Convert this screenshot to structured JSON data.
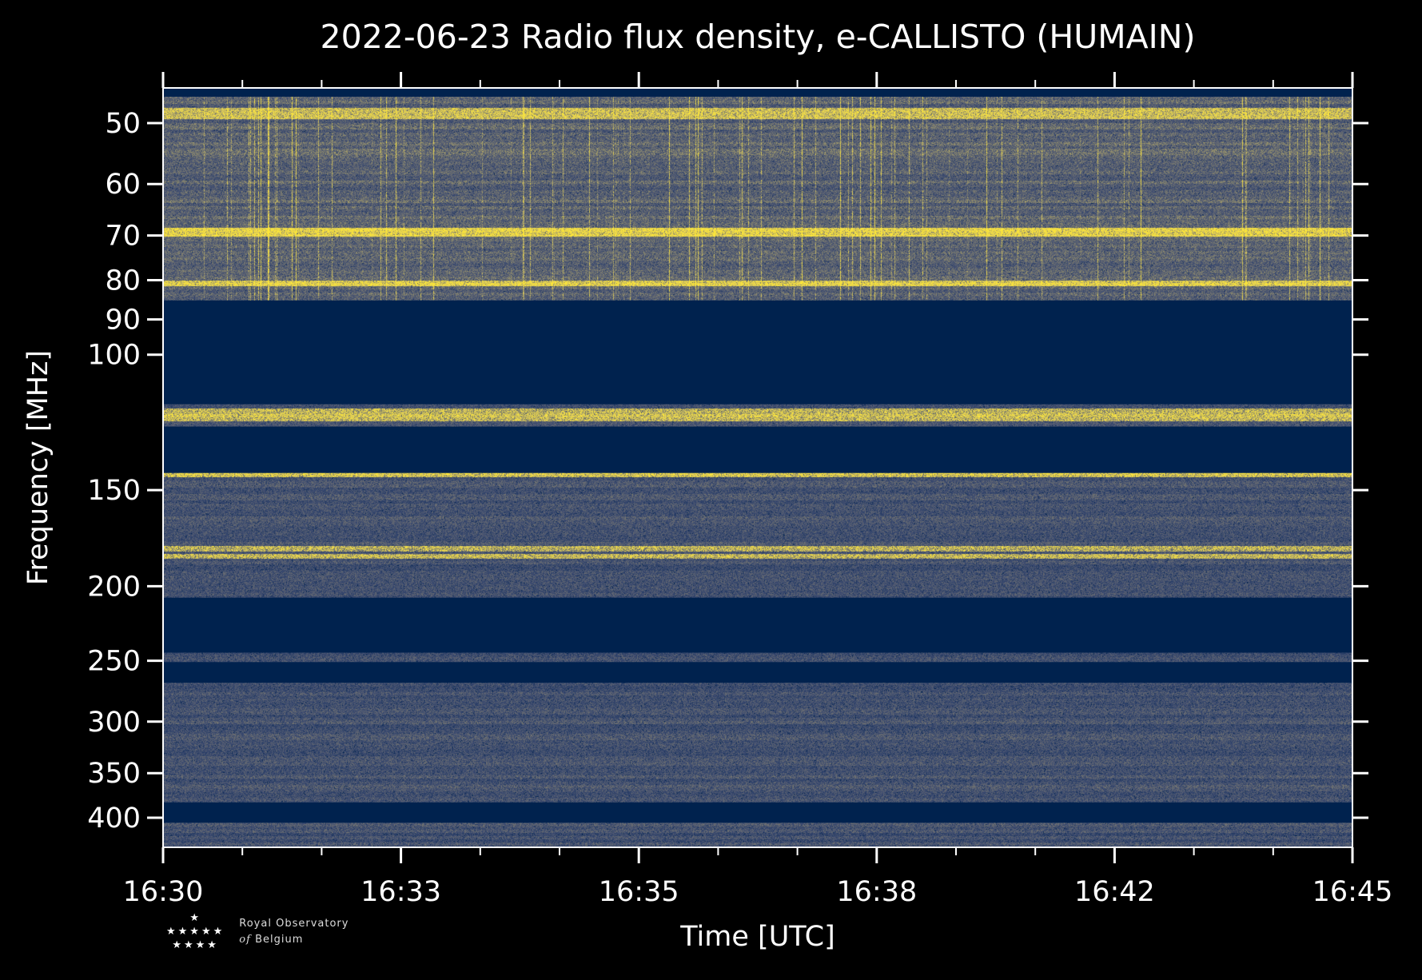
{
  "chart_data": {
    "type": "heatmap",
    "title": "2022-06-23 Radio flux density, e-CALLISTO (HUMAIN)",
    "xlabel": "Time [UTC]",
    "ylabel": "Frequency [MHz]",
    "x_tick_labels": [
      "16:30",
      "16:33",
      "16:35",
      "16:38",
      "16:42",
      "16:45"
    ],
    "x_range_minutes": [
      0,
      15
    ],
    "y_scale": "log",
    "y_inverted": true,
    "ylim": [
      45,
      437
    ],
    "y_ticks": [
      50,
      60,
      70,
      80,
      90,
      100,
      150,
      200,
      250,
      300,
      350,
      400
    ],
    "colormap": "cividis",
    "colors": {
      "masked": "#00224e",
      "low": "#3b4a70",
      "mid": "#6b6e72",
      "high": "#d8c760",
      "peak": "#fee838"
    },
    "masked_bands_mhz": [
      [
        45,
        46.2
      ],
      [
        85,
        116
      ],
      [
        124,
        142.5
      ],
      [
        207,
        244
      ],
      [
        251,
        267
      ],
      [
        382,
        406
      ]
    ],
    "bright_bands_mhz": [
      [
        47.8,
        49.2,
        0.7
      ],
      [
        68.5,
        70,
        0.9
      ],
      [
        80.2,
        81.2,
        0.8
      ],
      [
        117.5,
        121.5,
        0.85
      ],
      [
        142.5,
        143.8,
        1.0
      ],
      [
        177.5,
        179.5,
        0.85
      ],
      [
        182,
        183.5,
        0.8
      ]
    ]
  },
  "logo": {
    "line1": "Royal Observatory",
    "line2_prefix": "of",
    "line2": "Belgium"
  }
}
